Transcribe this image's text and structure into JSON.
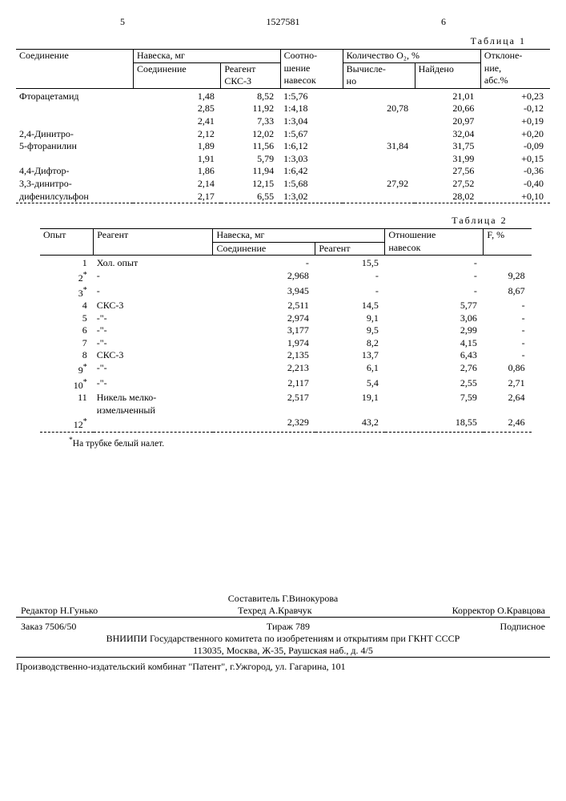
{
  "header": {
    "leftPageNum": "5",
    "rightPageNum": "6",
    "docNumber": "1527581"
  },
  "table1": {
    "caption": "Таблица 1",
    "head": {
      "compound": "Соединение",
      "sample": "Навеска, мг",
      "sample_compound": "Соединение",
      "sample_reagent_l1": "Реагент",
      "sample_reagent_l2": "СКС-3",
      "ratio_l1": "Соотно-",
      "ratio_l2": "шение",
      "ratio_l3": "навесок",
      "qty": "Количество O₂, %",
      "qty_calc_l1": "Вычисле-",
      "qty_calc_l2": "но",
      "qty_found": "Найдено",
      "dev_l1": "Отклоне-",
      "dev_l2": "ние,",
      "dev_l3": "абс.%"
    },
    "rows": [
      {
        "compound": "Фторацетамид",
        "c": "1,48",
        "r": "8,52",
        "ratio": "1:5,76",
        "calc": "",
        "found": "21,01",
        "dev": "+0,23"
      },
      {
        "compound": "",
        "c": "2,85",
        "r": "11,92",
        "ratio": "1:4,18",
        "calc": "20,78",
        "found": "20,66",
        "dev": "-0,12"
      },
      {
        "compound": "",
        "c": "2,41",
        "r": "7,33",
        "ratio": "1:3,04",
        "calc": "",
        "found": "20,97",
        "dev": "+0,19"
      },
      {
        "compound": "2,4-Динитро-",
        "c": "2,12",
        "r": "12,02",
        "ratio": "1:5,67",
        "calc": "",
        "found": "32,04",
        "dev": "+0,20"
      },
      {
        "compound": "5-фторанилин",
        "c": "1,89",
        "r": "11,56",
        "ratio": "1:6,12",
        "calc": "31,84",
        "found": "31,75",
        "dev": "-0,09"
      },
      {
        "compound": "",
        "c": "1,91",
        "r": "5,79",
        "ratio": "1:3,03",
        "calc": "",
        "found": "31,99",
        "dev": "+0,15"
      },
      {
        "compound": "4,4-Дифтор-",
        "c": "1,86",
        "r": "11,94",
        "ratio": "1:6,42",
        "calc": "",
        "found": "27,56",
        "dev": "-0,36"
      },
      {
        "compound": "3,3-динитро-",
        "c": "2,14",
        "r": "12,15",
        "ratio": "1:5,68",
        "calc": "27,92",
        "found": "27,52",
        "dev": "-0,40"
      },
      {
        "compound": "дифенилсульфон",
        "c": "2,17",
        "r": "6,55",
        "ratio": "1:3,02",
        "calc": "",
        "found": "28,02",
        "dev": "+0,10"
      }
    ]
  },
  "table2": {
    "caption": "Таблица 2",
    "head": {
      "exp": "Опыт",
      "reagent": "Реагент",
      "sample": "Навеска, мг",
      "sample_compound": "Соединение",
      "sample_reagent": "Реагент",
      "ratio_l1": "Отношение",
      "ratio_l2": "навесок",
      "f": "F, %"
    },
    "rows": [
      {
        "n": "1",
        "star": "",
        "reagent": "Хол. опыт",
        "c": "-",
        "r": "15,5",
        "ratio": "-",
        "f": ""
      },
      {
        "n": "2",
        "star": "*",
        "reagent": "-",
        "c": "2,968",
        "r": "-",
        "ratio": "-",
        "f": "9,28"
      },
      {
        "n": "3",
        "star": "*",
        "reagent": "-",
        "c": "3,945",
        "r": "-",
        "ratio": "-",
        "f": "8,67"
      },
      {
        "n": "4",
        "star": "",
        "reagent": "СКС-3",
        "c": "2,511",
        "r": "14,5",
        "ratio": "5,77",
        "f": "-"
      },
      {
        "n": "5",
        "star": "",
        "reagent": "-\"-",
        "c": "2,974",
        "r": "9,1",
        "ratio": "3,06",
        "f": "-"
      },
      {
        "n": "6",
        "star": "",
        "reagent": "-\"-",
        "c": "3,177",
        "r": "9,5",
        "ratio": "2,99",
        "f": "-"
      },
      {
        "n": "7",
        "star": "",
        "reagent": "-\"-",
        "c": "1,974",
        "r": "8,2",
        "ratio": "4,15",
        "f": "-"
      },
      {
        "n": "8",
        "star": "",
        "reagent": "СКС-3",
        "c": "2,135",
        "r": "13,7",
        "ratio": "6,43",
        "f": "-"
      },
      {
        "n": "9",
        "star": "*",
        "reagent": "-\"-",
        "c": "2,213",
        "r": "6,1",
        "ratio": "2,76",
        "f": "0,86"
      },
      {
        "n": "10",
        "star": "*",
        "reagent": "-\"-",
        "c": "2,117",
        "r": "5,4",
        "ratio": "2,55",
        "f": "2,71"
      },
      {
        "n": "11",
        "star": "",
        "reagent": "Никель мелко-",
        "c": "2,517",
        "r": "19,1",
        "ratio": "7,59",
        "f": "2,64"
      },
      {
        "n": "",
        "star": "",
        "reagent": "измельченный",
        "c": "",
        "r": "",
        "ratio": "",
        "f": ""
      },
      {
        "n": "12",
        "star": "*",
        "reagent": "",
        "c": "2,329",
        "r": "43,2",
        "ratio": "18,55",
        "f": "2,46"
      }
    ],
    "footnote_mark": "*",
    "footnote_text": "На трубке белый налет."
  },
  "footer": {
    "compiler_label": "Составитель",
    "compiler": "Г.Винокурова",
    "editor_label": "Редактор",
    "editor": "Н.Гунько",
    "techred_label": "Техред",
    "techred": "А.Кравчук",
    "corrector_label": "Корректор",
    "corrector": "О.Кравцова",
    "order": "Заказ 7506/50",
    "tirazh": "Тираж 789",
    "podpis": "Подписное",
    "org": "ВНИИПИ Государственного комитета по изобретениям и открытиям при ГКНТ СССР",
    "addr": "113035, Москва, Ж-35, Раушская наб., д. 4/5",
    "prod": "Производственно-издательский комбинат \"Патент\", г.Ужгород, ул. Гагарина, 101"
  }
}
